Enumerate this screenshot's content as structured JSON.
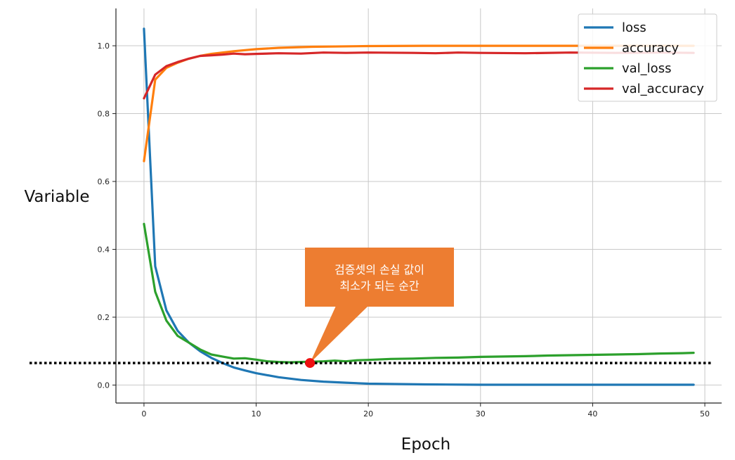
{
  "chart_data": {
    "type": "line",
    "xlabel": "Epoch",
    "ylabel": "Variable",
    "xlim": [
      -2.5,
      51.5
    ],
    "ylim": [
      -0.053,
      1.11
    ],
    "x_ticks": [
      0,
      10,
      20,
      30,
      40,
      50
    ],
    "x_tick_labels": [
      "0",
      "10",
      "20",
      "30",
      "40",
      "50"
    ],
    "y_ticks": [
      0.0,
      0.2,
      0.4,
      0.6,
      0.8,
      1.0
    ],
    "y_tick_labels": [
      "0.0",
      "0.2",
      "0.4",
      "0.6",
      "0.8",
      "1.0"
    ],
    "grid": true,
    "legend_position": "top-right",
    "series": [
      {
        "name": "loss",
        "color": "#1f77b4",
        "x": [
          0,
          1,
          2,
          3,
          4,
          5,
          6,
          7,
          8,
          9,
          10,
          12,
          14,
          16,
          18,
          20,
          25,
          30,
          35,
          40,
          45,
          49
        ],
        "y": [
          1.05,
          0.35,
          0.22,
          0.16,
          0.125,
          0.1,
          0.08,
          0.065,
          0.052,
          0.043,
          0.035,
          0.023,
          0.015,
          0.01,
          0.007,
          0.004,
          0.002,
          0.001,
          0.001,
          0.001,
          0.001,
          0.001
        ]
      },
      {
        "name": "accuracy",
        "color": "#ff7f0e",
        "x": [
          0,
          1,
          2,
          3,
          4,
          5,
          6,
          7,
          8,
          10,
          12,
          15,
          20,
          25,
          30,
          35,
          40,
          45,
          49
        ],
        "y": [
          0.66,
          0.9,
          0.935,
          0.95,
          0.962,
          0.97,
          0.976,
          0.98,
          0.984,
          0.99,
          0.994,
          0.997,
          0.999,
          1.0,
          1.0,
          1.0,
          1.0,
          1.0,
          1.0
        ]
      },
      {
        "name": "val_loss",
        "color": "#2ca02c",
        "x": [
          0,
          1,
          2,
          3,
          4,
          5,
          6,
          7,
          8,
          9,
          10,
          11,
          12,
          13,
          14,
          15,
          16,
          17,
          18,
          19,
          20,
          22,
          24,
          26,
          28,
          30,
          32,
          34,
          36,
          38,
          40,
          42,
          44,
          46,
          48,
          49
        ],
        "y": [
          0.475,
          0.275,
          0.19,
          0.145,
          0.125,
          0.105,
          0.09,
          0.084,
          0.078,
          0.079,
          0.075,
          0.07,
          0.068,
          0.067,
          0.068,
          0.069,
          0.07,
          0.072,
          0.07,
          0.073,
          0.074,
          0.077,
          0.078,
          0.08,
          0.081,
          0.083,
          0.084,
          0.085,
          0.087,
          0.088,
          0.089,
          0.09,
          0.091,
          0.093,
          0.094,
          0.095
        ]
      },
      {
        "name": "val_accuracy",
        "color": "#d62728",
        "x": [
          0,
          1,
          2,
          3,
          4,
          5,
          6,
          7,
          8,
          9,
          10,
          12,
          14,
          16,
          18,
          20,
          24,
          26,
          28,
          30,
          34,
          38,
          42,
          46,
          49
        ],
        "y": [
          0.845,
          0.915,
          0.94,
          0.952,
          0.962,
          0.97,
          0.972,
          0.974,
          0.977,
          0.975,
          0.976,
          0.978,
          0.977,
          0.98,
          0.979,
          0.98,
          0.979,
          0.978,
          0.98,
          0.979,
          0.978,
          0.98,
          0.979,
          0.98,
          0.979
        ]
      }
    ],
    "annotation": {
      "text_lines": [
        "검증셋의 손실 값이",
        "최소가 되는 순간"
      ],
      "point": {
        "x": 14.8,
        "y": 0.065
      },
      "marker_color": "#ee1111",
      "callout_color": "#ed7d31",
      "reference_line_y": 0.065
    }
  }
}
